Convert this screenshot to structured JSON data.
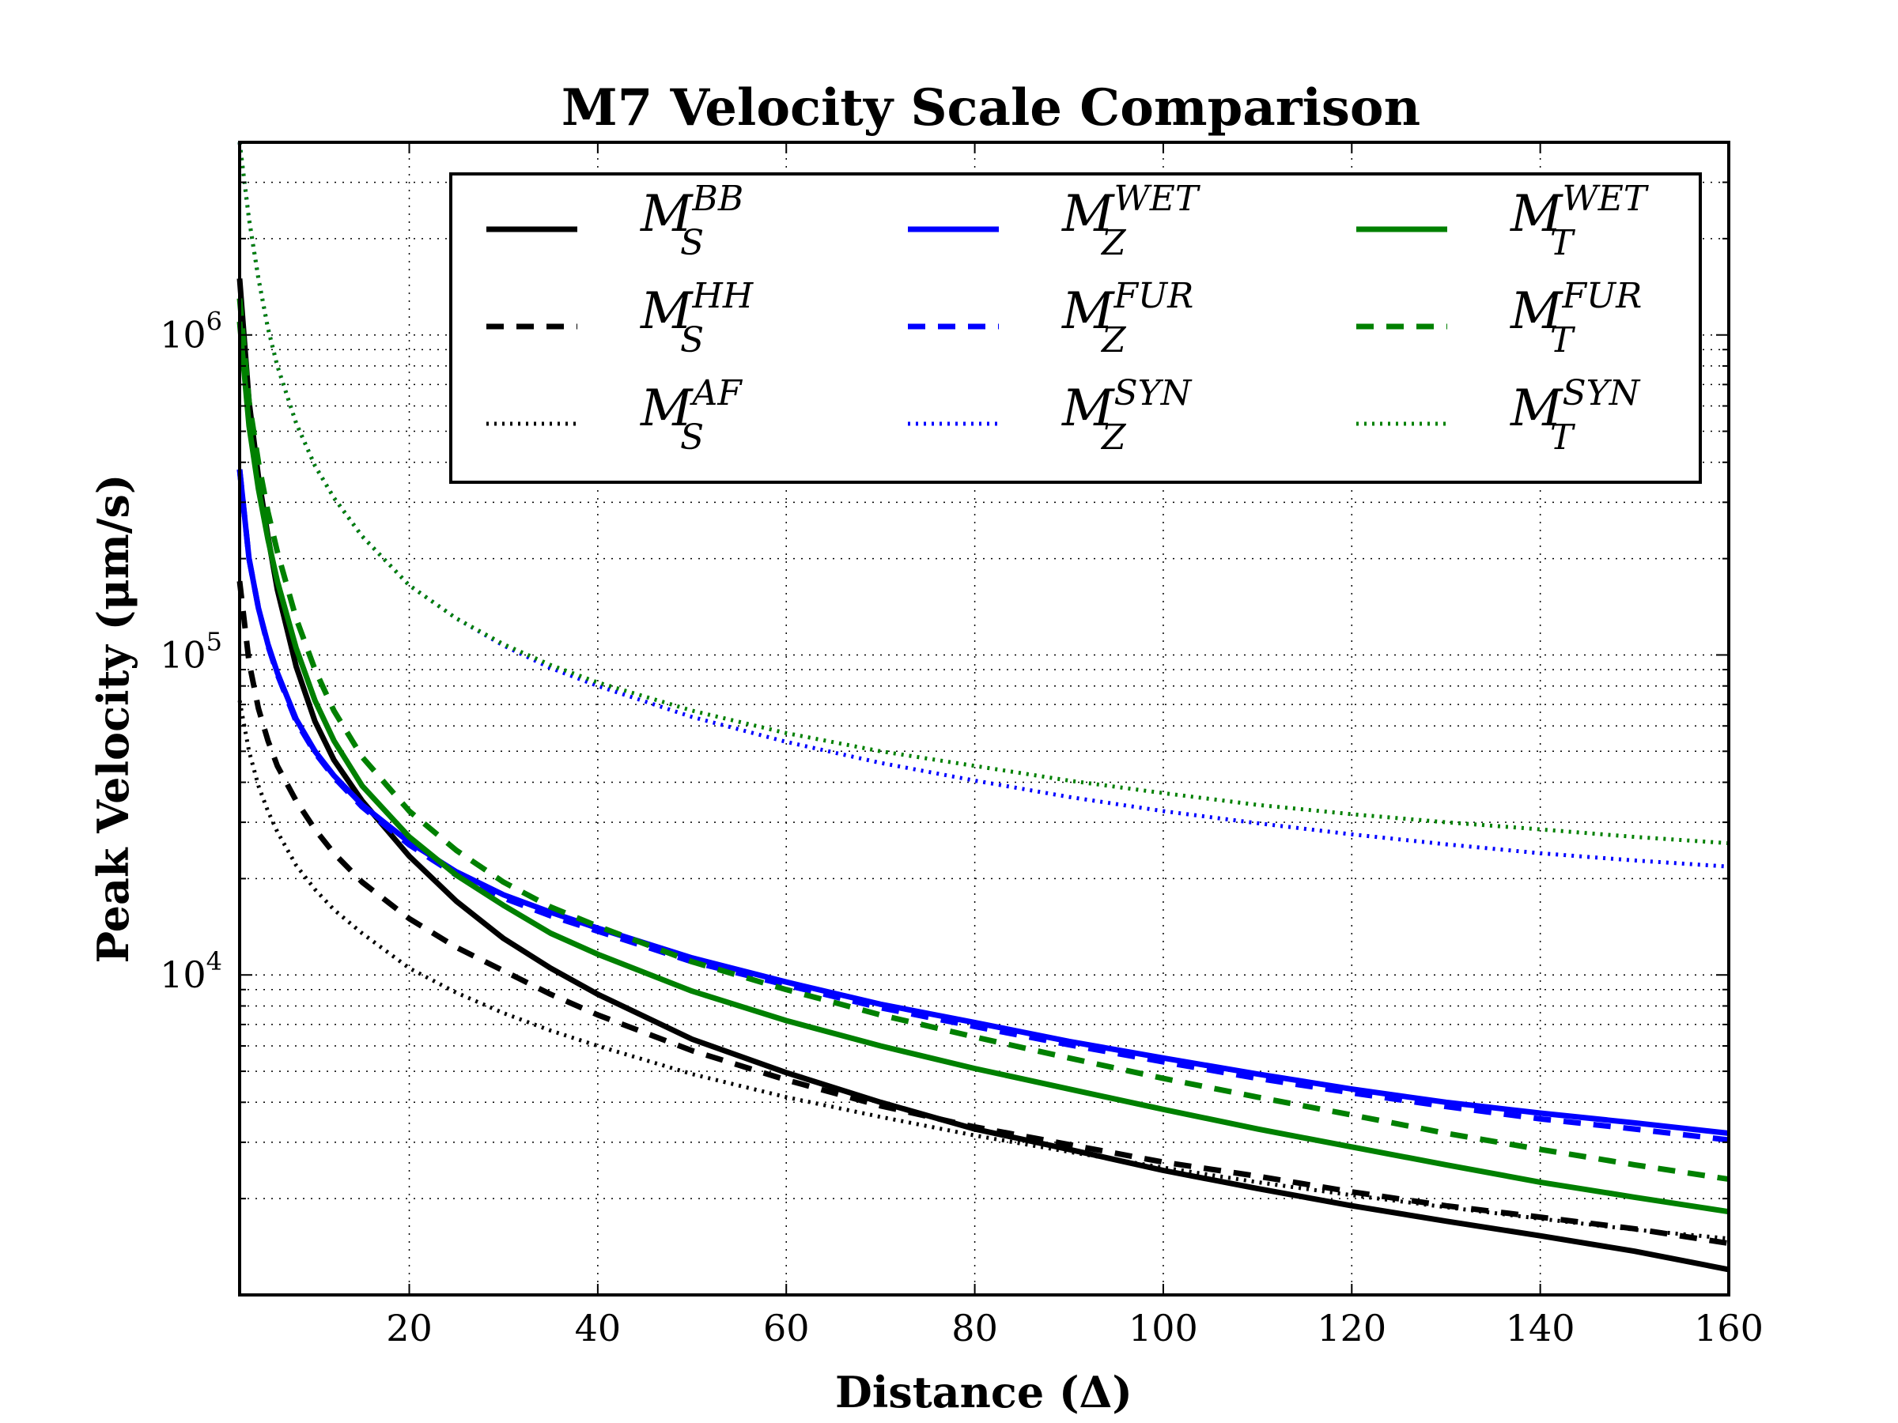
{
  "chart_data": {
    "type": "line",
    "title": "M7 Velocity Scale Comparison",
    "xlabel": "Distance (Δ)",
    "ylabel": "Peak Velocity (μm/s)",
    "xlim": [
      2,
      160
    ],
    "ylim": [
      1000,
      4000000
    ],
    "yscale": "log",
    "grid": true,
    "legend_position": "top",
    "x_ticks": [
      20,
      40,
      60,
      80,
      100,
      120,
      140,
      160
    ],
    "y_ticks": [
      {
        "value": 10000,
        "base": "10",
        "exp": "4"
      },
      {
        "value": 100000,
        "base": "10",
        "exp": "5"
      },
      {
        "value": 1000000,
        "base": "10",
        "exp": "6"
      }
    ],
    "x": [
      2,
      3,
      4,
      5,
      6,
      8,
      10,
      12,
      15,
      20,
      25,
      30,
      35,
      40,
      50,
      60,
      70,
      80,
      90,
      100,
      110,
      120,
      130,
      140,
      150,
      160
    ],
    "series": [
      {
        "name": "M_S^BB",
        "base": "M",
        "sub": "S",
        "sup": "BB",
        "color": "#000000",
        "dash": "solid",
        "width": 7,
        "values": [
          1500000,
          620000,
          360000,
          235000,
          160000,
          92000,
          62000,
          47000,
          35000,
          23500,
          17000,
          13000,
          10500,
          8700,
          6300,
          4950,
          4000,
          3300,
          2850,
          2450,
          2150,
          1900,
          1700,
          1530,
          1370,
          1200
        ]
      },
      {
        "name": "M_S^HH",
        "base": "M",
        "sub": "S",
        "sup": "HH",
        "color": "#000000",
        "dash": "dashed",
        "width": 7,
        "values": [
          170000,
          95000,
          68000,
          54000,
          45000,
          35000,
          28500,
          24000,
          19500,
          15000,
          12200,
          10300,
          8700,
          7500,
          5800,
          4700,
          3900,
          3350,
          2950,
          2600,
          2350,
          2100,
          1900,
          1750,
          1610,
          1450
        ]
      },
      {
        "name": "M_S^AF",
        "base": "M",
        "sub": "S",
        "sup": "AF",
        "color": "#000000",
        "dash": "dotted",
        "width": 5,
        "values": [
          72000,
          50000,
          39000,
          32500,
          28000,
          22000,
          18500,
          16000,
          13500,
          10500,
          8800,
          7600,
          6700,
          6000,
          4900,
          4150,
          3600,
          3150,
          2800,
          2500,
          2250,
          2050,
          1880,
          1730,
          1600,
          1500
        ]
      },
      {
        "name": "M_Z^WET",
        "base": "M",
        "sub": "Z",
        "sup": "WET",
        "color": "#0000ff",
        "dash": "solid",
        "width": 7,
        "values": [
          380000,
          200000,
          140000,
          108000,
          88000,
          63000,
          50000,
          42000,
          34000,
          26000,
          21000,
          17800,
          15700,
          14000,
          11300,
          9500,
          8100,
          7100,
          6200,
          5500,
          4900,
          4400,
          4000,
          3700,
          3450,
          3200
        ]
      },
      {
        "name": "M_Z^FUR",
        "base": "M",
        "sub": "Z",
        "sup": "FUR",
        "color": "#0000ff",
        "dash": "dashed",
        "width": 7,
        "values": [
          380000,
          200000,
          140000,
          107000,
          87000,
          62000,
          49500,
          41500,
          33500,
          25500,
          20500,
          17400,
          15300,
          13700,
          11000,
          9300,
          7900,
          6900,
          6050,
          5350,
          4750,
          4280,
          3880,
          3550,
          3300,
          3050
        ]
      },
      {
        "name": "M_Z^SYN",
        "base": "M",
        "sub": "Z",
        "sup": "SYN",
        "color": "#0000ff",
        "dash": "dotted",
        "width": 5,
        "values": [
          4000000,
          2300000,
          1500000,
          1050000,
          800000,
          530000,
          390000,
          310000,
          235000,
          165000,
          130000,
          107000,
          91000,
          80000,
          64000,
          53500,
          46000,
          40500,
          36000,
          32500,
          29800,
          27500,
          25600,
          24000,
          22800,
          21800
        ]
      },
      {
        "name": "M_T^WET",
        "base": "M",
        "sub": "T",
        "sup": "WET",
        "color": "#008000",
        "dash": "solid",
        "width": 7,
        "values": [
          1100000,
          520000,
          330000,
          230000,
          170000,
          105000,
          72000,
          54000,
          39000,
          27000,
          20500,
          16500,
          13500,
          11600,
          8900,
          7200,
          6000,
          5100,
          4400,
          3800,
          3300,
          2900,
          2550,
          2250,
          2020,
          1820
        ]
      },
      {
        "name": "M_T^FUR",
        "base": "M",
        "sub": "T",
        "sup": "FUR",
        "color": "#008000",
        "dash": "dashed",
        "width": 7,
        "values": [
          1300000,
          620000,
          400000,
          280000,
          210000,
          130000,
          90000,
          67000,
          48000,
          32500,
          24500,
          19500,
          16300,
          14200,
          11000,
          9000,
          7500,
          6400,
          5500,
          4750,
          4150,
          3650,
          3200,
          2850,
          2550,
          2300
        ]
      },
      {
        "name": "M_T^SYN",
        "base": "M",
        "sub": "T",
        "sup": "SYN",
        "color": "#008000",
        "dash": "dotted",
        "width": 5,
        "values": [
          4000000,
          2300000,
          1500000,
          1050000,
          800000,
          530000,
          390000,
          310000,
          235000,
          165000,
          130000,
          108000,
          93000,
          82000,
          67000,
          57000,
          50000,
          45000,
          40500,
          37000,
          34000,
          31800,
          30000,
          28500,
          27000,
          25800
        ]
      }
    ]
  }
}
